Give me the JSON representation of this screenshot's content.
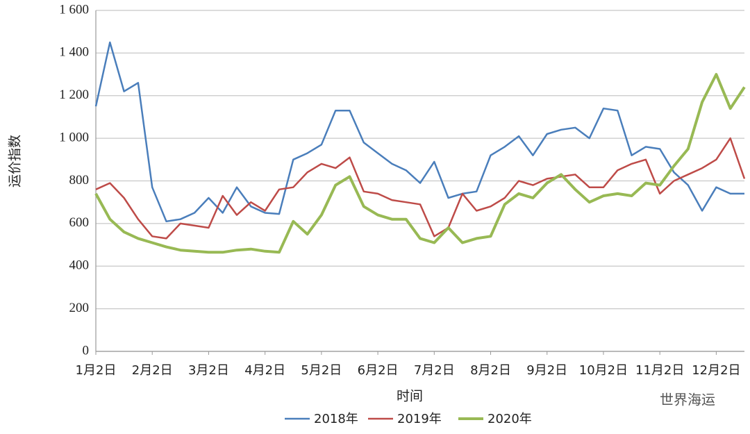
{
  "chart_data": {
    "type": "line",
    "y_label": "运价指数",
    "x_label": "时间",
    "annotation": "世界海运",
    "categories": [
      "1月2日",
      null,
      null,
      null,
      "2月2日",
      null,
      null,
      null,
      "3月2日",
      null,
      null,
      null,
      "4月2日",
      null,
      null,
      null,
      "5月2日",
      null,
      null,
      null,
      "6月2日",
      null,
      null,
      null,
      "7月2日",
      null,
      null,
      null,
      "8月2日",
      null,
      null,
      null,
      "9月2日",
      null,
      null,
      null,
      "10月2日",
      null,
      null,
      null,
      "11月2日",
      null,
      null,
      null,
      "12月2日",
      null,
      null
    ],
    "series": [
      {
        "name": "2018年",
        "color": "#4a7ebb",
        "values": [
          1150,
          1450,
          1220,
          1260,
          770,
          610,
          620,
          650,
          720,
          650,
          770,
          680,
          650,
          645,
          900,
          930,
          970,
          1130,
          1130,
          980,
          930,
          880,
          850,
          790,
          890,
          720,
          740,
          750,
          920,
          960,
          1010,
          920,
          1020,
          1040,
          1050,
          1000,
          1140,
          1130,
          920,
          960,
          950,
          840,
          780,
          660,
          770,
          740,
          740
        ]
      },
      {
        "name": "2019年",
        "color": "#be4b48",
        "values": [
          760,
          790,
          720,
          620,
          540,
          530,
          600,
          590,
          580,
          730,
          640,
          700,
          660,
          760,
          770,
          840,
          880,
          860,
          910,
          750,
          740,
          710,
          700,
          690,
          540,
          580,
          740,
          660,
          680,
          720,
          800,
          780,
          810,
          820,
          830,
          770,
          770,
          850,
          880,
          900,
          740,
          800,
          830,
          860,
          900,
          1000,
          810
        ]
      },
      {
        "name": "2020年",
        "color": "#98b954",
        "values": [
          740,
          620,
          560,
          530,
          510,
          490,
          475,
          470,
          465,
          465,
          475,
          480,
          470,
          465,
          610,
          550,
          640,
          780,
          820,
          680,
          640,
          620,
          620,
          530,
          510,
          580,
          510,
          530,
          540,
          690,
          740,
          720,
          790,
          830,
          760,
          700,
          730,
          740,
          730,
          790,
          780,
          870,
          950,
          1170,
          1300,
          1140,
          1240
        ]
      }
    ],
    "ylim": [
      0,
      1600
    ],
    "yticks": [
      0,
      200,
      400,
      600,
      800,
      {
        "value": 1000,
        "label": "1 000"
      },
      {
        "value": 1200,
        "label": "1 200"
      },
      {
        "value": 1400,
        "label": "1 400"
      },
      {
        "value": 1600,
        "label": "1 600"
      }
    ],
    "grid": true
  }
}
